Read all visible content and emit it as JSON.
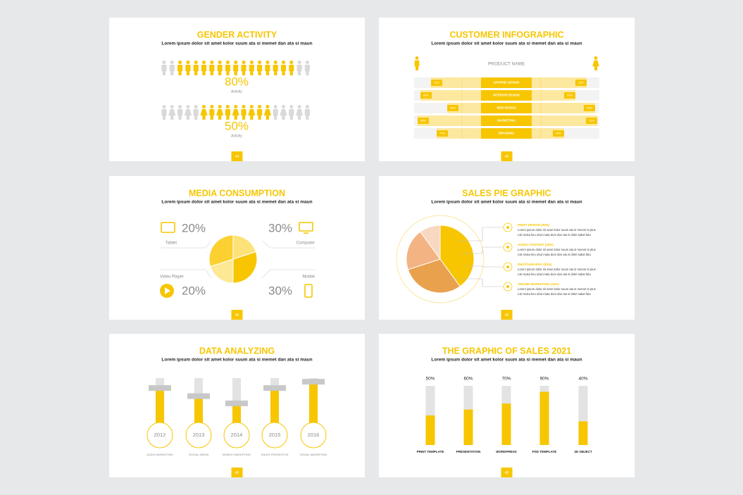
{
  "slides": [
    {
      "title": "GENDER ACTIVITY",
      "subtitle": "Lorem ipsum dolor sit amet kolor suum ata si memet dan ata si maun",
      "page": "44",
      "groups": [
        {
          "value": "80%",
          "label": "Activity"
        },
        {
          "value": "50%",
          "label": "Activity"
        }
      ]
    },
    {
      "title": "CUSTOMER INFOGRAPHIC",
      "subtitle": "Lorem ipsum dolor sit amet kolor suum ata si memet dan ata si maun",
      "page": "45",
      "product_name": "PRODUCT NAME",
      "rows": [
        {
          "label": "GRAPHIC DESIGN",
          "left": "75%",
          "right": "25%"
        },
        {
          "label": "INTERIOR DESIGN",
          "left": "80%",
          "right": "20%"
        },
        {
          "label": "WEB DESIGN",
          "left": "60%",
          "right": "40%"
        },
        {
          "label": "MARKETING",
          "left": "85%",
          "right": "15%"
        },
        {
          "label": "BRANDING",
          "left": "70%",
          "right": "30%"
        }
      ]
    },
    {
      "title": "MEDIA CONSUMPTION",
      "subtitle": "Lorem ipsum dolor sit amet kolor suum ata si memet dan ata si maun",
      "page": "46",
      "names": [
        "Tablet",
        "Computer",
        "Video Player",
        "Mobile"
      ],
      "values": [
        20,
        30,
        20,
        30
      ],
      "value_labels": [
        "20%",
        "30%",
        "20%",
        "30%"
      ]
    },
    {
      "title": "SALES PIE GRAPHIC",
      "subtitle": "Lorem ipsum dolor sit amet kolor suum ata si memet dan ata si maun",
      "page": "46",
      "values": [
        40,
        30,
        20,
        10
      ],
      "legend": [
        {
          "title": "PRINT DESIGN (40%)",
          "lines": [
            "Lorem ipsum dolor sit amet kolor suum ata si memet to plus",
            "Lsit muka keu ubut mata dum dan ata si dolet sakat fatu"
          ]
        },
        {
          "title": "AUDIO CONTENT (30%)",
          "lines": [
            "Lorem ipsum dolor sit amet kolor suum ata si memet to plus",
            "Lsit muka keu ubut mata dum dan ata si dolet sakat fatu"
          ]
        },
        {
          "title": "PHOTOGRAPHY (20%)",
          "lines": [
            "Lorem ipsum dolor sit amet kolor suum ata si memet to plus",
            "Lsit muka keu ubut mata dum dan ata si dolet sakat fatu"
          ]
        },
        {
          "title": "ONLINE MARKETING (10%)",
          "lines": [
            "Lorem ipsum dolor sit amet kolor suum ata si memet to plus",
            "Lsit muka keu ubut mata dum dan ata si dolet sakat fatu"
          ]
        }
      ]
    },
    {
      "title": "DATA ANALYZING",
      "subtitle": "Lorem ipsum dolor sit amet kolor suum ata si memet dan ata si maun",
      "page": "46",
      "years": [
        "2012",
        "2013",
        "2014",
        "2015",
        "2016"
      ],
      "labels": [
        "AUDIO MARKETING",
        "SOCIAL MEDIA",
        "MOBILE MARKETING",
        "SALES PROMOTION",
        "VISUAL MARKETING"
      ],
      "values": [
        78,
        60,
        44,
        78,
        92
      ],
      "ylim": [
        0,
        100
      ]
    },
    {
      "title": "THE GRAPHIC OF SALES 2021",
      "subtitle": "Lorem ipsum dolor sit amet kolor suum ata si memet dan ata si maun",
      "page": "48",
      "categories": [
        "PRINT TEMPLATE",
        "PRESENTATION",
        "WORDPRESS",
        "PSD TEMPLATE",
        "3D OBJECT"
      ],
      "values": [
        50,
        60,
        70,
        90,
        40
      ],
      "value_labels": [
        "50%",
        "60%",
        "70%",
        "90%",
        "40%"
      ],
      "ylim": [
        0,
        100
      ]
    }
  ]
}
